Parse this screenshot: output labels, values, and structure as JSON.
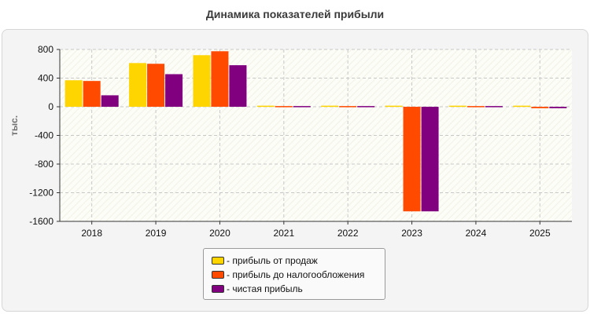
{
  "chart_data": {
    "type": "bar",
    "title": "Динамика показателей прибыли",
    "xlabel": "",
    "ylabel": "тыс.",
    "ylim": [
      -1600,
      800
    ],
    "yticks": [
      "800",
      "400",
      "0",
      "-400",
      "-800",
      "-1200",
      "-1600"
    ],
    "ytick_values": [
      800,
      400,
      0,
      -400,
      -800,
      -1200,
      -1600
    ],
    "categories": [
      "2018",
      "2019",
      "2020",
      "2021",
      "2022",
      "2023",
      "2024",
      "2025"
    ],
    "grid": true,
    "legend_position": "bottom-center",
    "series": [
      {
        "name": "- прибыль от продаж",
        "color": "#FFD500",
        "values": [
          370,
          610,
          720,
          15,
          15,
          15,
          15,
          15
        ]
      },
      {
        "name": "- прибыль до налогообложения",
        "color": "#FF4A00",
        "values": [
          360,
          600,
          775,
          10,
          10,
          -1460,
          10,
          -20
        ]
      },
      {
        "name": "- чистая прибыль",
        "color": "#800080",
        "values": [
          160,
          455,
          580,
          10,
          10,
          -1460,
          10,
          -20
        ]
      }
    ]
  }
}
